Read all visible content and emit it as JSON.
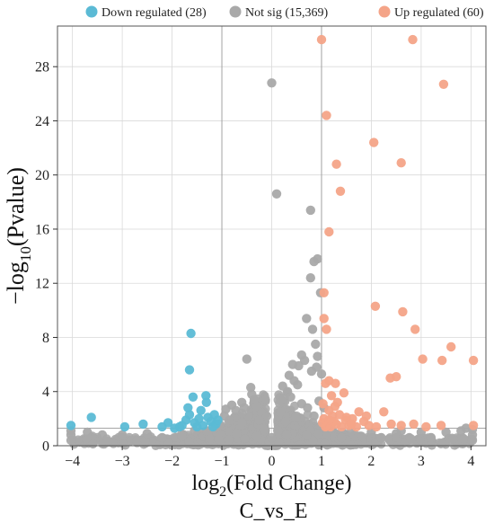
{
  "chart_data": {
    "type": "scatter",
    "title": "",
    "xlabel": "log2(Fold Change)",
    "xlabel_parts": {
      "base": "log",
      "subscript": "2",
      "suffix": "(Fold Change)"
    },
    "ylabel": "−log10(Pvalue)",
    "ylabel_parts": {
      "prefix": "−log",
      "subscript": "10",
      "suffix": "(Pvalue)"
    },
    "subtitle": "C_vs_E",
    "xlim": [
      -4.3,
      4.3
    ],
    "ylim": [
      0,
      31
    ],
    "xticks": [
      -4,
      -3,
      -2,
      -1,
      0,
      1,
      2,
      3,
      4
    ],
    "yticks": [
      0,
      4,
      8,
      12,
      16,
      20,
      24,
      28
    ],
    "grid": true,
    "legend_position": "top",
    "thresholds": {
      "x": [
        -1,
        1
      ],
      "y": 1.3
    },
    "series": [
      {
        "name": "Down regulated (28)",
        "color": "#5bbad5",
        "points": [
          [
            -4.03,
            1.5
          ],
          [
            -3.62,
            2.1
          ],
          [
            -2.95,
            1.4
          ],
          [
            -2.58,
            1.6
          ],
          [
            -2.2,
            1.4
          ],
          [
            -2.08,
            1.7
          ],
          [
            -1.95,
            1.3
          ],
          [
            -1.8,
            1.5
          ],
          [
            -1.72,
            1.9
          ],
          [
            -1.65,
            2.3
          ],
          [
            -1.68,
            2.8
          ],
          [
            -1.58,
            3.6
          ],
          [
            -1.55,
            1.7
          ],
          [
            -1.46,
            2.0
          ],
          [
            -1.42,
            2.6
          ],
          [
            -1.32,
            3.7
          ],
          [
            -1.31,
            3.2
          ],
          [
            -1.28,
            2.1
          ],
          [
            -1.22,
            1.8
          ],
          [
            -1.15,
            2.3
          ],
          [
            -1.12,
            1.6
          ],
          [
            -1.65,
            5.6
          ],
          [
            -1.62,
            8.3
          ],
          [
            -1.5,
            1.4
          ],
          [
            -1.85,
            1.4
          ],
          [
            -1.38,
            1.5
          ],
          [
            -1.18,
            1.4
          ],
          [
            -1.08,
            1.9
          ]
        ]
      },
      {
        "name": "Not sig (15,369)",
        "color": "#a9a9a9",
        "points": [
          [
            0.0,
            26.8
          ],
          [
            0.1,
            18.6
          ],
          [
            0.78,
            17.4
          ],
          [
            0.85,
            13.6
          ],
          [
            0.92,
            13.8
          ],
          [
            0.98,
            11.3
          ],
          [
            0.78,
            12.4
          ],
          [
            0.7,
            9.4
          ],
          [
            0.82,
            8.6
          ],
          [
            0.88,
            7.5
          ],
          [
            0.92,
            6.6
          ],
          [
            0.6,
            6.7
          ],
          [
            0.66,
            6.3
          ],
          [
            0.54,
            5.9
          ],
          [
            0.8,
            5.5
          ],
          [
            0.9,
            5.8
          ],
          [
            0.52,
            4.5
          ],
          [
            0.45,
            4.8
          ],
          [
            -0.5,
            6.4
          ],
          [
            -0.42,
            4.3
          ],
          [
            -0.4,
            3.8
          ],
          [
            -0.35,
            3.4
          ],
          [
            -0.6,
            3.2
          ],
          [
            -0.8,
            3.0
          ],
          [
            -0.92,
            2.7
          ],
          [
            -0.72,
            2.6
          ],
          [
            -0.55,
            2.8
          ],
          [
            -0.3,
            2.9
          ],
          [
            -0.2,
            2.4
          ],
          [
            -0.1,
            2.2
          ],
          [
            0.25,
            3.5
          ],
          [
            0.32,
            4.0
          ],
          [
            0.38,
            3.6
          ],
          [
            0.18,
            2.5
          ],
          [
            0.6,
            3.1
          ],
          [
            0.72,
            2.8
          ],
          [
            0.95,
            3.3
          ],
          [
            0.85,
            2.2
          ],
          [
            0.48,
            2.1
          ],
          [
            0.28,
            1.8
          ],
          [
            -0.25,
            1.9
          ],
          [
            -0.6,
            1.7
          ],
          [
            -0.85,
            1.9
          ],
          [
            -1.05,
            1.6
          ],
          [
            -1.3,
            1.1
          ],
          [
            1.2,
            1.2
          ],
          [
            1.6,
            1.1
          ],
          [
            2.0,
            1.0
          ],
          [
            2.5,
            0.9
          ],
          [
            3.0,
            1.0
          ],
          [
            3.5,
            1.0
          ],
          [
            3.8,
            1.1
          ],
          [
            -2.5,
            0.9
          ],
          [
            -3.0,
            0.8
          ],
          [
            -3.4,
            0.8
          ],
          [
            -4.03,
            0.4
          ],
          [
            -4.03,
            0.8
          ],
          [
            -4.03,
            1.1
          ],
          [
            4.03,
            0.4
          ],
          [
            4.03,
            0.8
          ],
          [
            4.03,
            1.2
          ],
          [
            3.2,
            0.6
          ],
          [
            2.8,
            0.5
          ],
          [
            -1.8,
            0.7
          ],
          [
            -2.2,
            0.6
          ],
          [
            1.4,
            0.6
          ],
          [
            1.8,
            0.7
          ],
          [
            2.2,
            0.6
          ],
          [
            -0.15,
            1.2
          ],
          [
            0.12,
            1.1
          ],
          [
            0.0,
            0.6
          ],
          [
            0.3,
            0.8
          ],
          [
            -0.3,
            0.7
          ],
          [
            -0.7,
            0.9
          ],
          [
            0.7,
            0.8
          ],
          [
            3.9,
            1.3
          ],
          [
            -3.7,
            1.0
          ],
          [
            2.6,
            1.1
          ],
          [
            -1.55,
            1.1
          ],
          [
            1.05,
            2.8
          ],
          [
            1.0,
            5.3
          ],
          [
            -0.95,
            2.2
          ],
          [
            0.35,
            5.2
          ],
          [
            0.42,
            6.0
          ],
          [
            0.22,
            4.4
          ]
        ]
      },
      {
        "name": "Up regulated (60)",
        "color": "#f4a488",
        "points": [
          [
            1.0,
            30.0
          ],
          [
            2.83,
            30.0
          ],
          [
            3.45,
            26.7
          ],
          [
            1.1,
            24.4
          ],
          [
            2.05,
            22.4
          ],
          [
            1.3,
            20.8
          ],
          [
            2.6,
            20.9
          ],
          [
            1.38,
            18.8
          ],
          [
            1.15,
            15.8
          ],
          [
            1.05,
            11.3
          ],
          [
            2.08,
            10.3
          ],
          [
            2.63,
            9.9
          ],
          [
            1.05,
            9.4
          ],
          [
            1.1,
            8.6
          ],
          [
            2.88,
            8.6
          ],
          [
            3.6,
            7.3
          ],
          [
            3.03,
            6.4
          ],
          [
            3.42,
            6.3
          ],
          [
            4.05,
            6.3
          ],
          [
            2.5,
            5.1
          ],
          [
            2.38,
            5.0
          ],
          [
            1.15,
            4.8
          ],
          [
            1.28,
            4.6
          ],
          [
            1.08,
            4.6
          ],
          [
            1.45,
            3.9
          ],
          [
            1.2,
            3.7
          ],
          [
            1.32,
            3.2
          ],
          [
            1.75,
            2.5
          ],
          [
            2.25,
            2.5
          ],
          [
            1.15,
            2.6
          ],
          [
            1.22,
            2.2
          ],
          [
            1.05,
            2.0
          ],
          [
            1.48,
            1.9
          ],
          [
            1.62,
            2.0
          ],
          [
            1.85,
            1.8
          ],
          [
            2.85,
            1.6
          ],
          [
            3.4,
            1.5
          ],
          [
            4.05,
            1.5
          ],
          [
            1.12,
            1.6
          ],
          [
            1.3,
            1.6
          ],
          [
            1.55,
            1.5
          ],
          [
            1.95,
            1.5
          ],
          [
            1.03,
            3.1
          ],
          [
            1.18,
            1.4
          ],
          [
            1.4,
            1.4
          ],
          [
            2.1,
            1.4
          ],
          [
            2.6,
            1.5
          ],
          [
            1.7,
            1.4
          ],
          [
            1.25,
            1.8
          ],
          [
            1.1,
            1.5
          ],
          [
            1.36,
            2.3
          ],
          [
            1.08,
            1.4
          ],
          [
            2.4,
            1.6
          ],
          [
            1.9,
            2.2
          ],
          [
            1.27,
            2.9
          ],
          [
            1.6,
            1.6
          ],
          [
            3.1,
            1.4
          ],
          [
            1.02,
            1.7
          ],
          [
            1.5,
            2.1
          ],
          [
            1.15,
            1.9
          ]
        ]
      }
    ]
  }
}
